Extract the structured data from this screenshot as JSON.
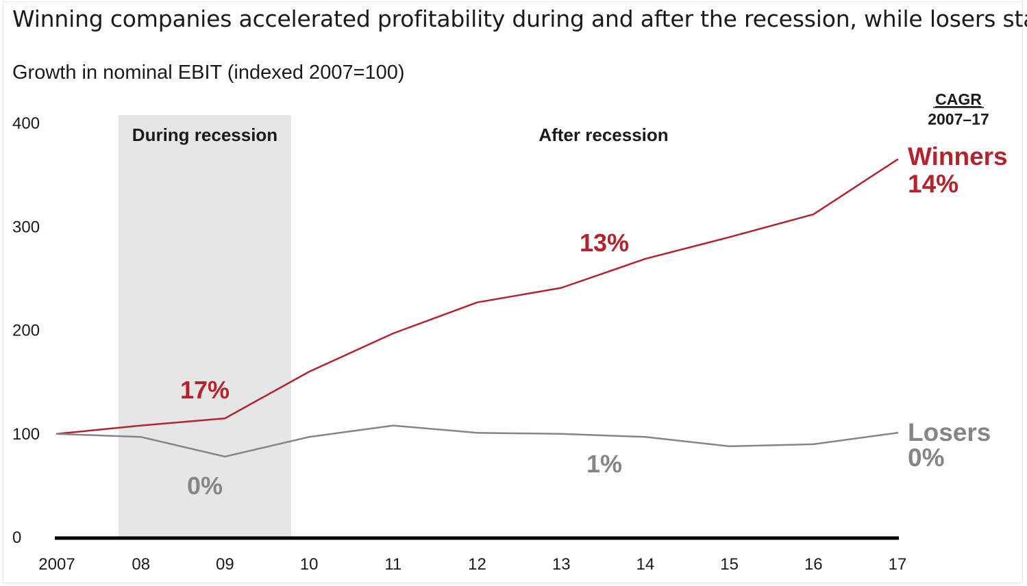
{
  "title": "Winning companies accelerated profitability during and after the recession, while losers stalled",
  "subtitle": "Growth in nominal EBIT (indexed 2007=100)",
  "colors": {
    "winners": "#b2232e",
    "losers": "#858585",
    "recession_band": "#e6e6e6",
    "axis": "#000000",
    "text": "#1a1a1a"
  },
  "chart_data": {
    "type": "line",
    "title": "Winning companies accelerated profitability during and after the recession, while losers stalled",
    "subtitle": "Growth in nominal EBIT (indexed 2007=100)",
    "x": [
      "2007",
      "08",
      "09",
      "10",
      "11",
      "12",
      "13",
      "14",
      "15",
      "16",
      "17"
    ],
    "y_ticks": [
      "0",
      "100",
      "200",
      "300",
      "400"
    ],
    "ylim": [
      0,
      400
    ],
    "grid": false,
    "series": [
      {
        "name": "Winners",
        "cagr_label": "14%",
        "values": [
          100,
          108,
          115,
          160,
          197,
          227,
          241,
          269,
          290,
          312,
          365
        ]
      },
      {
        "name": "Losers",
        "cagr_label": "0%",
        "values": [
          100,
          97,
          78,
          97,
          108,
          101,
          100,
          97,
          88,
          90,
          101
        ]
      }
    ],
    "periods": [
      {
        "label": "During recession",
        "shaded": true,
        "winners_cagr": "17%",
        "losers_cagr": "0%"
      },
      {
        "label": "After recession",
        "shaded": false,
        "winners_cagr": "13%",
        "losers_cagr": "1%"
      }
    ],
    "cagr_header": {
      "line1": "CAGR",
      "line2": "2007–17"
    }
  }
}
